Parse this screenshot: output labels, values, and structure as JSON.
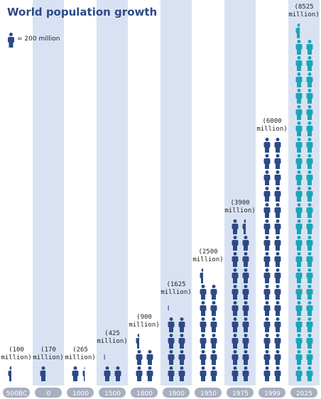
{
  "chart_data": {
    "type": "isotype",
    "title": "World population growth",
    "unit": {
      "value": 200,
      "label": "= 200 million"
    },
    "categories": [
      "500BC",
      "0",
      "1000",
      "1500",
      "1800",
      "1900",
      "1950",
      "1975",
      "1999",
      "2025"
    ],
    "values": [
      100,
      170,
      265,
      425,
      900,
      1625,
      2500,
      3900,
      6000,
      8525
    ],
    "value_labels": [
      "(100 million)",
      "(170 million)",
      "(265 million)",
      "(425 million)",
      "(900 million)",
      "(1625 million)",
      "(2500 million)",
      "(3900 million)",
      "(6000 million)",
      "(8525 million)"
    ],
    "colors": [
      "#2d4a86",
      "#2d4a86",
      "#2d4a86",
      "#2d4a86",
      "#2d4a86",
      "#2d4a86",
      "#2d4a86",
      "#2d4a86",
      "#2d4a86",
      "#1ba6b6"
    ]
  }
}
